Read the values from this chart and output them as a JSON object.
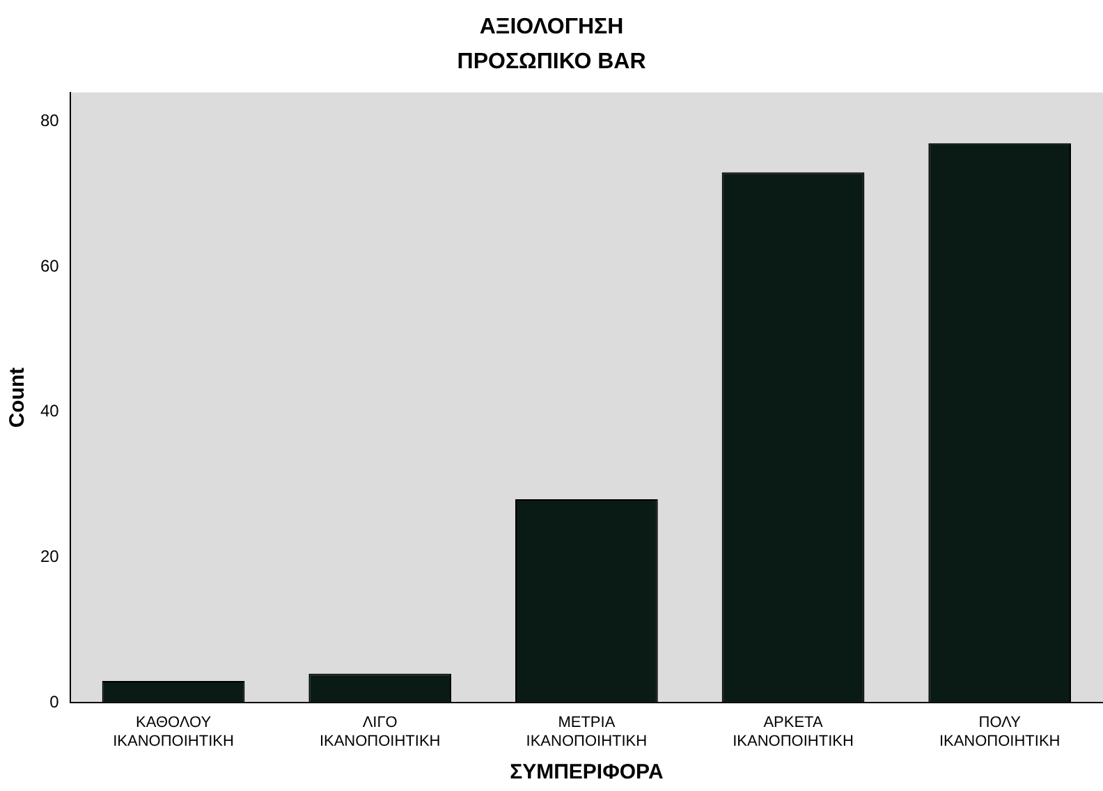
{
  "chart_data": {
    "type": "bar",
    "title": "ΑΞΙΟΛΟΓΗΣΗ",
    "subtitle": "ΠΡΟΣΩΠΙΚΟ BAR",
    "xlabel": "ΣΥΜΠΕΡΙΦΟΡΑ",
    "ylabel": "Count",
    "categories": [
      "ΚΑΘΟΛΟΥ\nΙΚΑΝΟΠΟΙΗΤΙΚΗ",
      "ΛΙΓΟ\nΙΚΑΝΟΠΟΙΗΤΙΚΗ",
      "ΜΕΤΡΙΑ\nΙΚΑΝΟΠΟΙΗΤΙΚΗ",
      "ΑΡΚΕΤΑ\nΙΚΑΝΟΠΟΙΗΤΙΚΗ",
      "ΠΟΛΥ\nΙΚΑΝΟΠΟΙΗΤΙΚΗ"
    ],
    "values": [
      3,
      4,
      28,
      73,
      77
    ],
    "color": "#0a1a14",
    "ylim": [
      0,
      84
    ],
    "yticks": [
      0,
      20,
      40,
      60,
      80
    ],
    "grid": false,
    "legend": false
  }
}
